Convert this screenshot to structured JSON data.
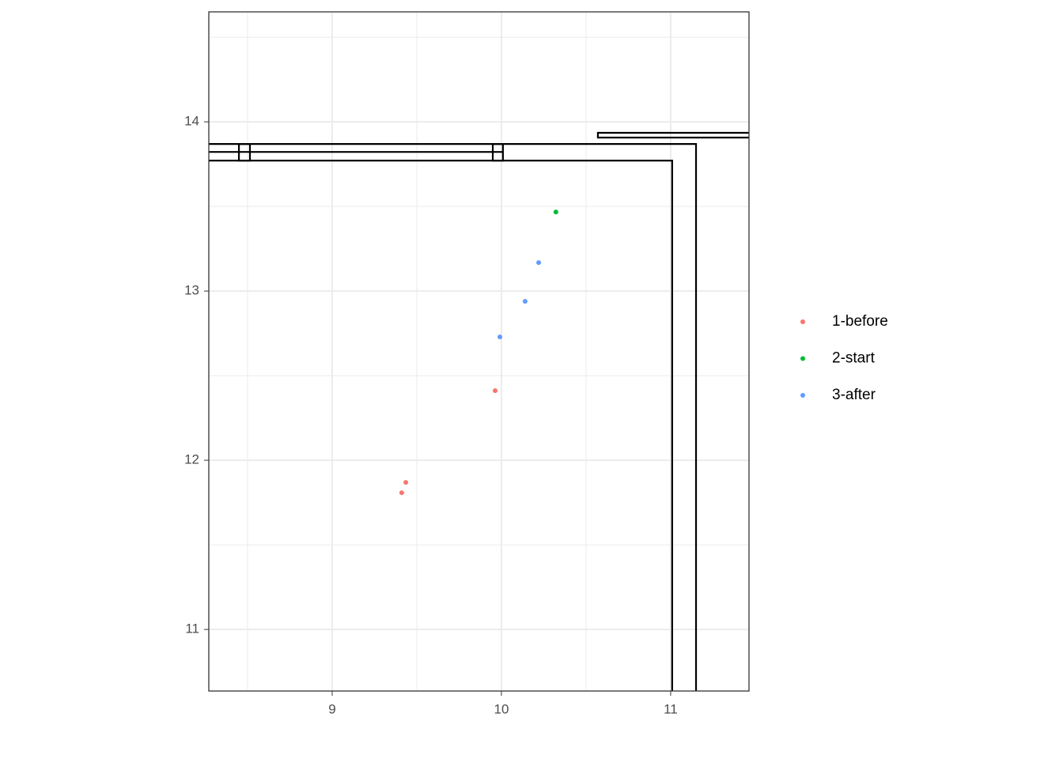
{
  "chart_data": {
    "type": "scatter",
    "series": [
      {
        "name": "1-before",
        "color": "#F8766D",
        "x": [
          9.435,
          9.411,
          9.963
        ],
        "y": [
          11.869,
          11.808,
          12.411
        ]
      },
      {
        "name": "2-start",
        "color": "#00BA38",
        "x": [
          10.322
        ],
        "y": [
          13.467
        ]
      },
      {
        "name": "3-after",
        "color": "#619CFF",
        "x": [
          9.991,
          10.14,
          10.22
        ],
        "y": [
          12.729,
          12.939,
          13.168
        ]
      }
    ],
    "outlines": [
      {
        "x": [
          8.271,
          11.15,
          11.15
        ],
        "y": [
          13.869,
          13.869,
          10.636
        ]
      },
      {
        "x": [
          8.271,
          11.009,
          11.009
        ],
        "y": [
          13.771,
          13.771,
          10.636
        ]
      },
      {
        "x": [
          8.271,
          10.009
        ],
        "y": [
          13.822,
          13.822
        ]
      },
      {
        "x": [
          8.449,
          8.514,
          8.514,
          8.449,
          8.449
        ],
        "y": [
          13.869,
          13.869,
          13.771,
          13.771,
          13.869
        ]
      },
      {
        "x": [
          9.949,
          10.009,
          10.009,
          9.949,
          9.949
        ],
        "y": [
          13.869,
          13.869,
          13.771,
          13.771,
          13.869
        ]
      },
      {
        "x": [
          11.463,
          10.57,
          10.57,
          11.463
        ],
        "y": [
          13.935,
          13.935,
          13.907,
          13.907
        ]
      }
    ],
    "outline_color": "#000000",
    "xlim": [
      8.271,
      11.463
    ],
    "ylim": [
      10.636,
      14.65
    ],
    "xticks": [
      9,
      10,
      11
    ],
    "yticks": [
      11,
      12,
      13,
      14
    ],
    "grid": true,
    "legend": "right"
  }
}
